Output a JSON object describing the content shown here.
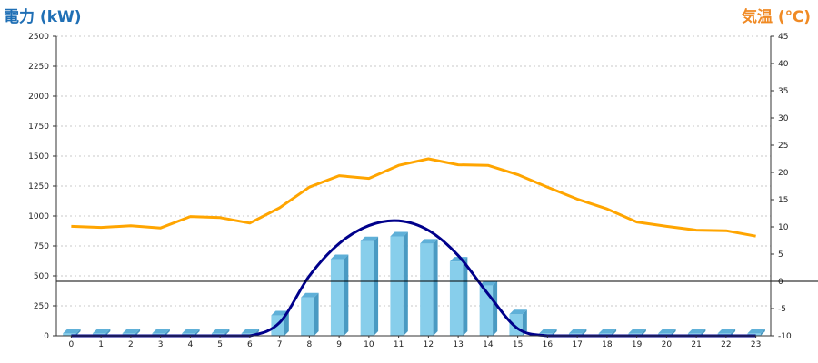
{
  "chart_data": {
    "type": "bar+line",
    "left_axis": {
      "label": "電力 (kW)",
      "color": "#1f6fb5",
      "min": 0,
      "max": 2500,
      "step": 250
    },
    "right_axis": {
      "label": "気温 (℃)",
      "color": "#f08a24",
      "min": -10,
      "max": 45,
      "step": 5
    },
    "categories": [
      "0",
      "1",
      "2",
      "3",
      "4",
      "5",
      "6",
      "7",
      "8",
      "9",
      "10",
      "11",
      "12",
      "13",
      "14",
      "15",
      "16",
      "17",
      "18",
      "19",
      "20",
      "21",
      "22",
      "23"
    ],
    "grid": true,
    "series": [
      {
        "type": "bar",
        "axis": "left",
        "color": "#87ceeb",
        "values": [
          20,
          20,
          20,
          20,
          20,
          20,
          20,
          170,
          320,
          640,
          790,
          830,
          770,
          620,
          420,
          180,
          20,
          20,
          20,
          20,
          20,
          20,
          20,
          20
        ]
      },
      {
        "type": "line",
        "axis": "left",
        "color": "#00008b",
        "smooth": true,
        "values": [
          0,
          0,
          0,
          0,
          0,
          0,
          0,
          110,
          500,
          770,
          920,
          960,
          880,
          670,
          350,
          60,
          0,
          0,
          0,
          0,
          0,
          0,
          0,
          0
        ]
      },
      {
        "type": "line",
        "axis": "right",
        "color": "#ffa500",
        "values": [
          10.1,
          9.9,
          10.2,
          9.8,
          11.9,
          11.7,
          10.7,
          13.5,
          17.3,
          19.4,
          18.9,
          21.3,
          22.5,
          21.4,
          21.3,
          19.6,
          17.3,
          15.1,
          13.3,
          10.9,
          10.1,
          9.4,
          9.3,
          8.3
        ]
      }
    ]
  }
}
